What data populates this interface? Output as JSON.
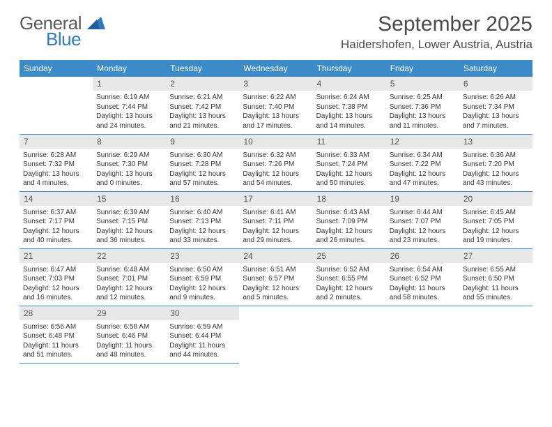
{
  "logo": {
    "main": "General",
    "sub": "Blue"
  },
  "title": "September 2025",
  "location": "Haidershofen, Lower Austria, Austria",
  "header_bg": "#3b8bc9",
  "daynum_bg": "#e8e8e8",
  "border_color": "#3b8bc9",
  "weekdays": [
    "Sunday",
    "Monday",
    "Tuesday",
    "Wednesday",
    "Thursday",
    "Friday",
    "Saturday"
  ],
  "weeks": [
    [
      null,
      {
        "n": "1",
        "sunrise": "6:19 AM",
        "sunset": "7:44 PM",
        "daylight": "13 hours and 24 minutes."
      },
      {
        "n": "2",
        "sunrise": "6:21 AM",
        "sunset": "7:42 PM",
        "daylight": "13 hours and 21 minutes."
      },
      {
        "n": "3",
        "sunrise": "6:22 AM",
        "sunset": "7:40 PM",
        "daylight": "13 hours and 17 minutes."
      },
      {
        "n": "4",
        "sunrise": "6:24 AM",
        "sunset": "7:38 PM",
        "daylight": "13 hours and 14 minutes."
      },
      {
        "n": "5",
        "sunrise": "6:25 AM",
        "sunset": "7:36 PM",
        "daylight": "13 hours and 11 minutes."
      },
      {
        "n": "6",
        "sunrise": "6:26 AM",
        "sunset": "7:34 PM",
        "daylight": "13 hours and 7 minutes."
      }
    ],
    [
      {
        "n": "7",
        "sunrise": "6:28 AM",
        "sunset": "7:32 PM",
        "daylight": "13 hours and 4 minutes."
      },
      {
        "n": "8",
        "sunrise": "6:29 AM",
        "sunset": "7:30 PM",
        "daylight": "13 hours and 0 minutes."
      },
      {
        "n": "9",
        "sunrise": "6:30 AM",
        "sunset": "7:28 PM",
        "daylight": "12 hours and 57 minutes."
      },
      {
        "n": "10",
        "sunrise": "6:32 AM",
        "sunset": "7:26 PM",
        "daylight": "12 hours and 54 minutes."
      },
      {
        "n": "11",
        "sunrise": "6:33 AM",
        "sunset": "7:24 PM",
        "daylight": "12 hours and 50 minutes."
      },
      {
        "n": "12",
        "sunrise": "6:34 AM",
        "sunset": "7:22 PM",
        "daylight": "12 hours and 47 minutes."
      },
      {
        "n": "13",
        "sunrise": "6:36 AM",
        "sunset": "7:20 PM",
        "daylight": "12 hours and 43 minutes."
      }
    ],
    [
      {
        "n": "14",
        "sunrise": "6:37 AM",
        "sunset": "7:17 PM",
        "daylight": "12 hours and 40 minutes."
      },
      {
        "n": "15",
        "sunrise": "6:39 AM",
        "sunset": "7:15 PM",
        "daylight": "12 hours and 36 minutes."
      },
      {
        "n": "16",
        "sunrise": "6:40 AM",
        "sunset": "7:13 PM",
        "daylight": "12 hours and 33 minutes."
      },
      {
        "n": "17",
        "sunrise": "6:41 AM",
        "sunset": "7:11 PM",
        "daylight": "12 hours and 29 minutes."
      },
      {
        "n": "18",
        "sunrise": "6:43 AM",
        "sunset": "7:09 PM",
        "daylight": "12 hours and 26 minutes."
      },
      {
        "n": "19",
        "sunrise": "6:44 AM",
        "sunset": "7:07 PM",
        "daylight": "12 hours and 23 minutes."
      },
      {
        "n": "20",
        "sunrise": "6:45 AM",
        "sunset": "7:05 PM",
        "daylight": "12 hours and 19 minutes."
      }
    ],
    [
      {
        "n": "21",
        "sunrise": "6:47 AM",
        "sunset": "7:03 PM",
        "daylight": "12 hours and 16 minutes."
      },
      {
        "n": "22",
        "sunrise": "6:48 AM",
        "sunset": "7:01 PM",
        "daylight": "12 hours and 12 minutes."
      },
      {
        "n": "23",
        "sunrise": "6:50 AM",
        "sunset": "6:59 PM",
        "daylight": "12 hours and 9 minutes."
      },
      {
        "n": "24",
        "sunrise": "6:51 AM",
        "sunset": "6:57 PM",
        "daylight": "12 hours and 5 minutes."
      },
      {
        "n": "25",
        "sunrise": "6:52 AM",
        "sunset": "6:55 PM",
        "daylight": "12 hours and 2 minutes."
      },
      {
        "n": "26",
        "sunrise": "6:54 AM",
        "sunset": "6:52 PM",
        "daylight": "11 hours and 58 minutes."
      },
      {
        "n": "27",
        "sunrise": "6:55 AM",
        "sunset": "6:50 PM",
        "daylight": "11 hours and 55 minutes."
      }
    ],
    [
      {
        "n": "28",
        "sunrise": "6:56 AM",
        "sunset": "6:48 PM",
        "daylight": "11 hours and 51 minutes."
      },
      {
        "n": "29",
        "sunrise": "6:58 AM",
        "sunset": "6:46 PM",
        "daylight": "11 hours and 48 minutes."
      },
      {
        "n": "30",
        "sunrise": "6:59 AM",
        "sunset": "6:44 PM",
        "daylight": "11 hours and 44 minutes."
      },
      null,
      null,
      null,
      null
    ]
  ],
  "labels": {
    "sunrise": "Sunrise:",
    "sunset": "Sunset:",
    "daylight": "Daylight:"
  }
}
